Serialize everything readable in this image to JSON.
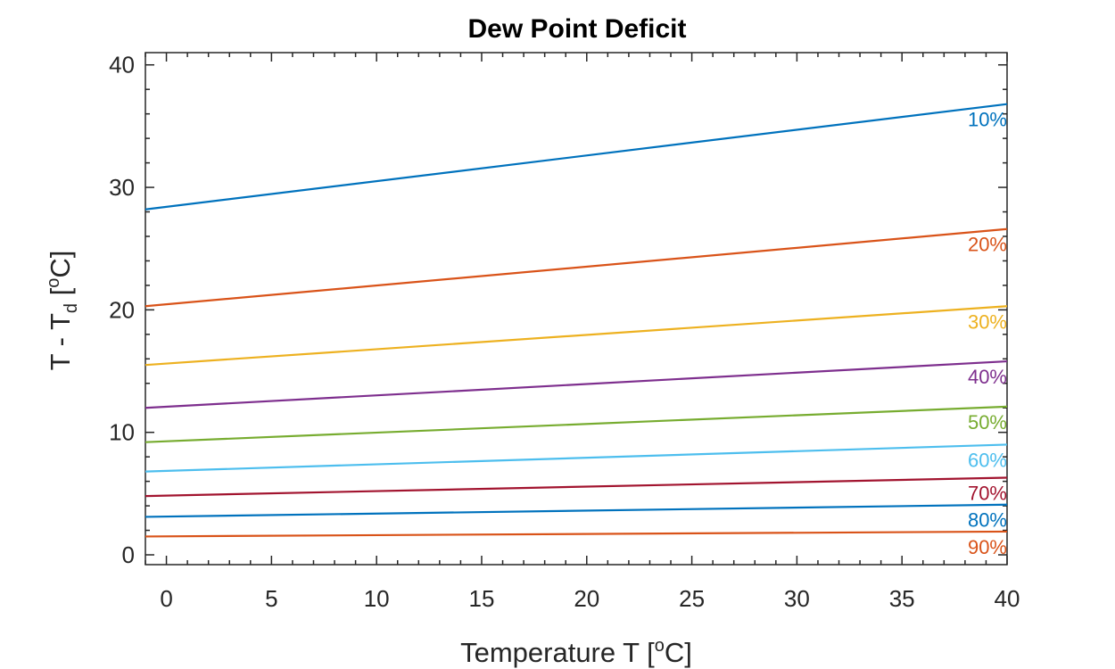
{
  "chart_data": {
    "type": "line",
    "title": "Dew Point Deficit",
    "xlabel": {
      "main": "Temperature T [",
      "sup": "o",
      "end": "C]"
    },
    "ylabel": {
      "main": "T - T",
      "sub": "d",
      "mid": " [",
      "sup": "o",
      "end": "C]"
    },
    "xlim": [
      -1,
      40
    ],
    "ylim": [
      -0.8,
      41
    ],
    "xticks": [
      0,
      5,
      10,
      15,
      20,
      25,
      30,
      35,
      40
    ],
    "yticks": [
      0,
      10,
      20,
      30,
      40
    ],
    "x": [
      -1,
      40
    ],
    "series": [
      {
        "name": "10%",
        "values": [
          28.2,
          36.8
        ],
        "color": "#0072BD"
      },
      {
        "name": "20%",
        "values": [
          20.3,
          26.6
        ],
        "color": "#D95319"
      },
      {
        "name": "30%",
        "values": [
          15.5,
          20.3
        ],
        "color": "#EDB120"
      },
      {
        "name": "40%",
        "values": [
          12.0,
          15.8
        ],
        "color": "#7E2F8E"
      },
      {
        "name": "50%",
        "values": [
          9.2,
          12.1
        ],
        "color": "#77AC30"
      },
      {
        "name": "60%",
        "values": [
          6.8,
          9.0
        ],
        "color": "#4DBEEE"
      },
      {
        "name": "70%",
        "values": [
          4.8,
          6.3
        ],
        "color": "#A2142F"
      },
      {
        "name": "80%",
        "values": [
          3.1,
          4.1
        ],
        "color": "#0072BD"
      },
      {
        "name": "90%",
        "values": [
          1.5,
          1.9
        ],
        "color": "#D95319"
      }
    ],
    "grid": false,
    "legend": "none",
    "label_placement": "right-end-of-line"
  }
}
